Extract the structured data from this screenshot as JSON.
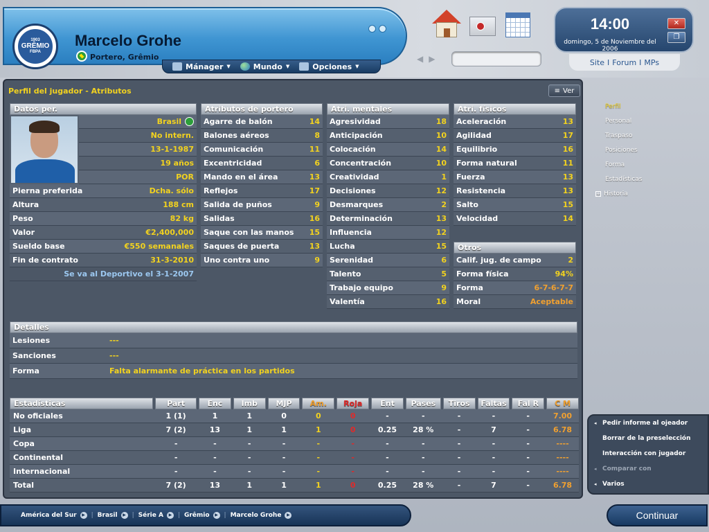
{
  "header": {
    "club_crest": "GRÊMIO",
    "crest_top": "1903",
    "crest_bottom": "FBPA",
    "player_name": "Marcelo Grohe",
    "player_sub": "Portero, Grêmio"
  },
  "menu": [
    {
      "label": "Mánager",
      "icon": "manager-icon"
    },
    {
      "label": "Mundo",
      "icon": "globe-icon"
    },
    {
      "label": "Opciones",
      "icon": "options-icon"
    }
  ],
  "clock": {
    "time": "14:00",
    "date": "domingo, 5 de Noviembre del 2006"
  },
  "site_links": [
    "Site",
    "Forum",
    "MPs"
  ],
  "page": {
    "title": "Perfil del jugador - Atributos",
    "ver_label": "Ver"
  },
  "datos": {
    "header": "Datos per.",
    "top_values": [
      {
        "value": "Brasil"
      },
      {
        "value": "No intern."
      },
      {
        "value": "13-1-1987"
      },
      {
        "value": "19 años"
      },
      {
        "value": "POR"
      }
    ],
    "rows": [
      {
        "label": "Pierna preferida",
        "value": "Dcha. sólo"
      },
      {
        "label": "Altura",
        "value": "188 cm"
      },
      {
        "label": "Peso",
        "value": "82 kg"
      },
      {
        "label": "Valor",
        "value": "€2,400,000"
      },
      {
        "label": "Sueldo base",
        "value": "€550 semanales"
      },
      {
        "label": "Fin de contrato",
        "value": "31-3-2010"
      }
    ],
    "loan": "Se va al Deportivo el 3-1-2007"
  },
  "portero": {
    "header": "Atributos de portero",
    "rows": [
      {
        "label": "Agarre de balón",
        "value": "14"
      },
      {
        "label": "Balones aéreos",
        "value": "8"
      },
      {
        "label": "Comunicación",
        "value": "11"
      },
      {
        "label": "Excentricidad",
        "value": "6"
      },
      {
        "label": "Mando en el área",
        "value": "13"
      },
      {
        "label": "Reflejos",
        "value": "17"
      },
      {
        "label": "Salida de puños",
        "value": "9"
      },
      {
        "label": "Salidas",
        "value": "16"
      },
      {
        "label": "Saque con las manos",
        "value": "15"
      },
      {
        "label": "Saques de puerta",
        "value": "13"
      },
      {
        "label": "Uno contra uno",
        "value": "9"
      }
    ]
  },
  "mentales": {
    "header": "Atri. mentales",
    "rows": [
      {
        "label": "Agresividad",
        "value": "18"
      },
      {
        "label": "Anticipación",
        "value": "10"
      },
      {
        "label": "Colocación",
        "value": "14"
      },
      {
        "label": "Concentración",
        "value": "10"
      },
      {
        "label": "Creatividad",
        "value": "1"
      },
      {
        "label": "Decisiones",
        "value": "12"
      },
      {
        "label": "Desmarques",
        "value": "2"
      },
      {
        "label": "Determinación",
        "value": "13"
      },
      {
        "label": "Influencia",
        "value": "12"
      },
      {
        "label": "Lucha",
        "value": "15"
      },
      {
        "label": "Serenidad",
        "value": "6"
      },
      {
        "label": "Talento",
        "value": "5"
      },
      {
        "label": "Trabajo equipo",
        "value": "9"
      },
      {
        "label": "Valentía",
        "value": "16"
      }
    ]
  },
  "fisicos": {
    "header": "Atri. físicos",
    "rows": [
      {
        "label": "Aceleración",
        "value": "13"
      },
      {
        "label": "Agilidad",
        "value": "17"
      },
      {
        "label": "Equilibrio",
        "value": "16"
      },
      {
        "label": "Forma natural",
        "value": "11"
      },
      {
        "label": "Fuerza",
        "value": "13"
      },
      {
        "label": "Resistencia",
        "value": "13"
      },
      {
        "label": "Salto",
        "value": "15"
      },
      {
        "label": "Velocidad",
        "value": "14"
      }
    ]
  },
  "otros": {
    "header": "Otros",
    "rows": [
      {
        "label": "Calif. jug. de campo",
        "value": "2"
      },
      {
        "label": "Forma física",
        "value": "94%"
      },
      {
        "label": "Forma",
        "value": "6-7-6-7-7"
      },
      {
        "label": "Moral",
        "value": "Aceptable"
      }
    ]
  },
  "detalles": {
    "header": "Detalles",
    "rows": [
      {
        "label": "Lesiones",
        "value": "---"
      },
      {
        "label": "Sanciones",
        "value": "---"
      },
      {
        "label": "Forma",
        "value": "Falta alarmante de práctica en los partidos"
      }
    ]
  },
  "estadisticas": {
    "columns": [
      "Estadísticas",
      "Part",
      "Enc",
      "Imb",
      "MJP",
      "Am.",
      "Roja",
      "Ent",
      "Pases",
      "Tiros",
      "Faltas",
      "Fal R",
      "C M"
    ],
    "rows": [
      [
        "No oficiales",
        "1 (1)",
        "1",
        "1",
        "0",
        "0",
        "0",
        "-",
        "-",
        "-",
        "-",
        "-",
        "7.00"
      ],
      [
        "Liga",
        "7 (2)",
        "13",
        "1",
        "1",
        "1",
        "0",
        "0.25",
        "28 %",
        "-",
        "7",
        "-",
        "6.78"
      ],
      [
        "Copa",
        "-",
        "-",
        "-",
        "-",
        "-",
        "-",
        "-",
        "-",
        "-",
        "-",
        "-",
        "----"
      ],
      [
        "Continental",
        "-",
        "-",
        "-",
        "-",
        "-",
        "-",
        "-",
        "-",
        "-",
        "-",
        "-",
        "----"
      ],
      [
        "Internacional",
        "-",
        "-",
        "-",
        "-",
        "-",
        "-",
        "-",
        "-",
        "-",
        "-",
        "-",
        "----"
      ],
      [
        "Total",
        "7 (2)",
        "13",
        "1",
        "1",
        "1",
        "0",
        "0.25",
        "28 %",
        "-",
        "7",
        "-",
        "6.78"
      ]
    ]
  },
  "side_nav": [
    {
      "label": "Perfil",
      "active": true
    },
    {
      "label": "Personal"
    },
    {
      "label": "Traspaso"
    },
    {
      "label": "Posiciones"
    },
    {
      "label": "Forma"
    },
    {
      "label": "Estadísticas"
    },
    {
      "label": "Historia"
    }
  ],
  "actions": [
    {
      "label": "Pedir informe al ojeador"
    },
    {
      "label": "Borrar de la preselección"
    },
    {
      "label": "Interacción con jugador"
    },
    {
      "label": "Comparar con"
    },
    {
      "label": "Varios"
    }
  ],
  "breadcrumb": [
    "América del Sur",
    "Brasil",
    "Série A",
    "Grêmio",
    "Marcelo Grohe"
  ],
  "continue_label": "Continuar",
  "colors": {
    "accent_yellow": "#f2d21f",
    "accent_orange": "#f0a030",
    "red_card": "#e02a2a"
  }
}
